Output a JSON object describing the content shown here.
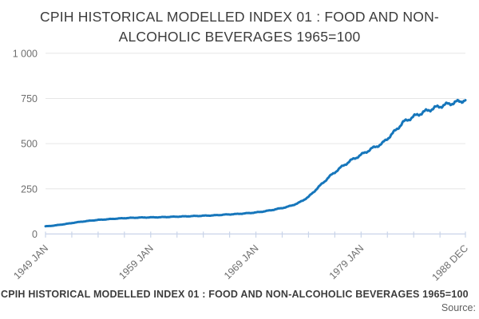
{
  "title": {
    "line1": "CPIH HISTORICAL MODELLED INDEX 01 : FOOD AND NON-",
    "line2": "ALCOHOLIC BEVERAGES 1965=100"
  },
  "footer": {
    "chart_title": "CPIH HISTORICAL MODELLED INDEX 01 : FOOD AND NON-ALCOHOLIC BEVERAGES 1965=100",
    "source_label": "Source:"
  },
  "colors": {
    "series_line": "#1676bb",
    "gridline": "#e6e6e6",
    "axis_line": "#c9d4e9",
    "tick_text": "#6e6e6e",
    "title_text": "#3c3c3c",
    "background": "#ffffff"
  },
  "chart_data": {
    "type": "line",
    "title": "CPIH HISTORICAL MODELLED INDEX 01 : FOOD AND NON-ALCOHOLIC BEVERAGES 1965=100",
    "xlabel": "",
    "ylabel": "",
    "legend": "none",
    "grid": "horizontal",
    "x_axis": {
      "start_label": "1949 JAN",
      "end_label": "1988 DEC",
      "total_months": 479,
      "minor_tick_every_months": 30,
      "tick_labels": [
        {
          "label": "1949 JAN",
          "month": 0
        },
        {
          "label": "1959 JAN",
          "month": 120
        },
        {
          "label": "1969 JAN",
          "month": 240
        },
        {
          "label": "1979 JAN",
          "month": 360
        },
        {
          "label": "1988 DEC",
          "month": 479
        }
      ]
    },
    "y_axis": {
      "min": 0,
      "max": 1000,
      "ticks": [
        {
          "label": "0",
          "value": 0
        },
        {
          "label": "250",
          "value": 250
        },
        {
          "label": "500",
          "value": 500
        },
        {
          "label": "750",
          "value": 750
        },
        {
          "label": "1 000",
          "value": 1000
        }
      ]
    },
    "series": [
      {
        "name": "CPIH HISTORICAL MODELLED INDEX 01 : FOOD AND NON-ALCOHOLIC BEVERAGES 1965=100",
        "color": "#1676bb",
        "points_year_value": [
          [
            1949,
            42
          ],
          [
            1950,
            48
          ],
          [
            1951,
            56
          ],
          [
            1952,
            65
          ],
          [
            1953,
            72
          ],
          [
            1954,
            78
          ],
          [
            1955,
            82
          ],
          [
            1956,
            86
          ],
          [
            1957,
            89
          ],
          [
            1958,
            91
          ],
          [
            1959,
            92
          ],
          [
            1960,
            93
          ],
          [
            1961,
            95
          ],
          [
            1962,
            97
          ],
          [
            1963,
            99
          ],
          [
            1964,
            101
          ],
          [
            1965,
            103
          ],
          [
            1966,
            107
          ],
          [
            1967,
            110
          ],
          [
            1968,
            114
          ],
          [
            1969,
            119
          ],
          [
            1970,
            127
          ],
          [
            1971,
            138
          ],
          [
            1972,
            150
          ],
          [
            1973,
            170
          ],
          [
            1974,
            205
          ],
          [
            1975,
            262
          ],
          [
            1976,
            318
          ],
          [
            1977,
            365
          ],
          [
            1978,
            406
          ],
          [
            1979,
            438
          ],
          [
            1980,
            472
          ],
          [
            1981,
            500
          ],
          [
            1982,
            556
          ],
          [
            1983,
            618
          ],
          [
            1984,
            650
          ],
          [
            1985,
            676
          ],
          [
            1986,
            698
          ],
          [
            1987,
            715
          ],
          [
            1988,
            729
          ],
          [
            1988.92,
            741
          ]
        ]
      }
    ],
    "seasonal_wiggle": {
      "period_months": 12,
      "amplitude_pct": 1.1
    }
  }
}
